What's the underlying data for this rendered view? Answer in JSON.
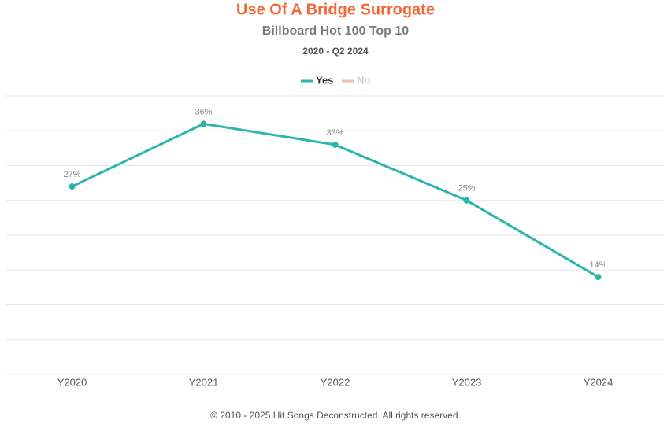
{
  "chart_data": {
    "type": "line",
    "title": "Use Of A Bridge Surrogate",
    "subtitle": "Billboard Hot 100 Top 10",
    "period": "2020 - Q2 2024",
    "categories": [
      "Y2020",
      "Y2021",
      "Y2022",
      "Y2023",
      "Y2024"
    ],
    "series": [
      {
        "name": "Yes",
        "color": "#2bb5ad",
        "values": [
          27,
          36,
          33,
          25,
          14
        ],
        "value_labels": [
          "27%",
          "36%",
          "33%",
          "25%",
          "14%"
        ]
      },
      {
        "name": "No",
        "color": "#f4bcb2",
        "visible": false
      }
    ],
    "ylim": [
      0,
      40
    ],
    "yticks": [
      0,
      5,
      10,
      15,
      20,
      25,
      30,
      35,
      40
    ],
    "grid": true,
    "footer": "© 2010 - 2025 Hit Songs Deconstructed. All rights reserved."
  }
}
